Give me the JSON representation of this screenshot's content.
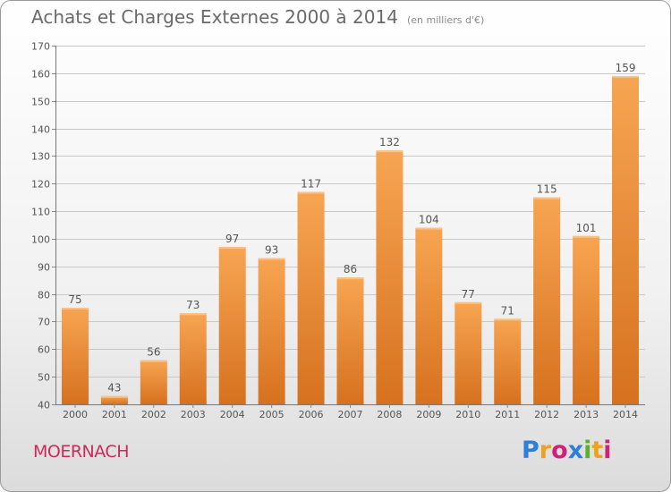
{
  "title": "Achats et Charges Externes 2000 à 2014",
  "subtitle": "(en milliers d'€)",
  "city": "MOERNACH",
  "logo": {
    "text": "Proxiti",
    "letters": [
      {
        "ch": "P",
        "color": "#2f7fd6"
      },
      {
        "ch": "r",
        "color": "#f0a020"
      },
      {
        "ch": "o",
        "color": "#d0207a"
      },
      {
        "ch": "x",
        "color": "#2f7fd6"
      },
      {
        "ch": "i",
        "color": "#60b030"
      },
      {
        "ch": "t",
        "color": "#f0a020"
      },
      {
        "ch": "i",
        "color": "#d0207a"
      }
    ]
  },
  "colors": {
    "bar_top": "#f7a552",
    "bar_bottom": "#d6711f",
    "grid": "#c8c8c8",
    "axis_text": "#555555",
    "label_text": "#555555"
  },
  "chart_data": {
    "type": "bar",
    "title": "Achats et Charges Externes 2000 à 2014",
    "subtitle": "(en milliers d'€)",
    "categories": [
      "2000",
      "2001",
      "2002",
      "2003",
      "2004",
      "2005",
      "2006",
      "2007",
      "2008",
      "2009",
      "2010",
      "2011",
      "2012",
      "2013",
      "2014"
    ],
    "values": [
      75,
      43,
      56,
      73,
      97,
      93,
      117,
      86,
      132,
      104,
      77,
      71,
      115,
      101,
      159
    ],
    "ylim": [
      40,
      170
    ],
    "yticks": [
      40,
      50,
      60,
      70,
      80,
      90,
      100,
      110,
      120,
      130,
      140,
      150,
      160,
      170
    ],
    "xlabel": "",
    "ylabel": "",
    "grid": true
  }
}
